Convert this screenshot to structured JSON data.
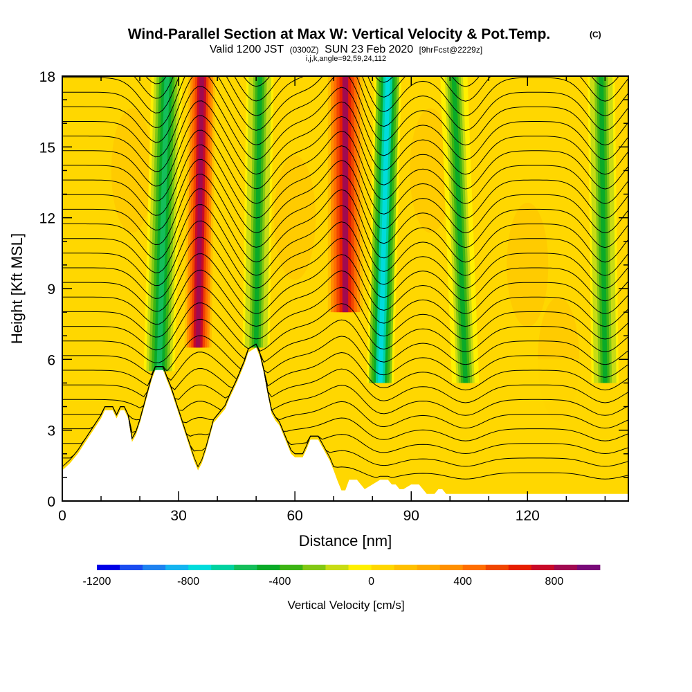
{
  "header": {
    "title": "Wind-Parallel Section at Max W: Vertical Velocity & Pot.Temp.",
    "copyright": "(C)",
    "valid_prefix": "Valid 1200 JST",
    "valid_utc": "(0300Z)",
    "valid_date": "SUN 23 Feb 2020",
    "forecast": "[9hrFcst@2229z]",
    "indices": "i,j,k,angle=92,59,24,112"
  },
  "chart_data": {
    "type": "heatmap",
    "xlabel": "Distance [nm]",
    "ylabel": "Height [Kft MSL]",
    "xlim": [
      0,
      146
    ],
    "ylim": [
      0,
      18
    ],
    "x_ticks": [
      0,
      30,
      60,
      90,
      120
    ],
    "y_ticks": [
      0,
      3,
      6,
      9,
      12,
      15,
      18
    ],
    "colorbar": {
      "label": "Vertical Velocity [cm/s]",
      "min": -1200,
      "max": 1000,
      "step": 100,
      "tick_values": [
        -1200,
        -800,
        -400,
        0,
        400,
        800
      ],
      "tick_labels": [
        "-1200",
        "-800",
        "-400",
        "0",
        "400",
        "800"
      ],
      "colors": [
        "#0000e6",
        "#1a4cf0",
        "#1e82f0",
        "#14b4f0",
        "#00dcdc",
        "#00d2a0",
        "#14be5a",
        "#0aaa28",
        "#3cb414",
        "#82c814",
        "#c8dc14",
        "#fff000",
        "#ffd700",
        "#ffc000",
        "#ffaa00",
        "#ff9000",
        "#ff6e00",
        "#f04600",
        "#e61e00",
        "#c80a28",
        "#a00a50",
        "#780a78"
      ]
    },
    "vertical_velocity_bands": [
      {
        "x": 25,
        "x_top": 27,
        "width": 4,
        "base_ft": 5500,
        "w": -520
      },
      {
        "x": 35,
        "x_top": 36,
        "width": 3.5,
        "base_ft": 6500,
        "w": 850
      },
      {
        "x": 50,
        "x_top": 51,
        "width": 3.5,
        "base_ft": 6500,
        "w": -430
      },
      {
        "x": 73,
        "x_top": 73,
        "width": 4.5,
        "base_ft": 8000,
        "w": 820
      },
      {
        "x": 82,
        "x_top": 84,
        "width": 3.5,
        "base_ft": 5000,
        "w": -760
      },
      {
        "x": 104,
        "x_top": 101,
        "width": 3.5,
        "base_ft": 5000,
        "w": -420
      },
      {
        "x": 140,
        "x_top": 139,
        "width": 3.5,
        "base_ft": 5000,
        "w": -440
      }
    ],
    "terrain_kft": [
      [
        0,
        1.3
      ],
      [
        2,
        1.6
      ],
      [
        4,
        2.0
      ],
      [
        6,
        2.5
      ],
      [
        8,
        3.0
      ],
      [
        10,
        3.5
      ],
      [
        11,
        3.85
      ],
      [
        13,
        3.85
      ],
      [
        14,
        3.5
      ],
      [
        15,
        3.85
      ],
      [
        16,
        3.85
      ],
      [
        17,
        3.5
      ],
      [
        17.5,
        3.0
      ],
      [
        18,
        2.5
      ],
      [
        19,
        2.8
      ],
      [
        20,
        3.3
      ],
      [
        21,
        3.9
      ],
      [
        22,
        4.5
      ],
      [
        23,
        5.1
      ],
      [
        24,
        5.55
      ],
      [
        26,
        5.55
      ],
      [
        27,
        5.1
      ],
      [
        28,
        4.7
      ],
      [
        29,
        4.2
      ],
      [
        30,
        3.7
      ],
      [
        31,
        3.2
      ],
      [
        32,
        2.7
      ],
      [
        33,
        2.2
      ],
      [
        34,
        1.7
      ],
      [
        35,
        1.3
      ],
      [
        36,
        1.6
      ],
      [
        37,
        2.1
      ],
      [
        38,
        2.7
      ],
      [
        39,
        3.3
      ],
      [
        41,
        3.7
      ],
      [
        42,
        3.9
      ],
      [
        43,
        4.3
      ],
      [
        45,
        5.0
      ],
      [
        47,
        5.8
      ],
      [
        48,
        6.3
      ],
      [
        50,
        6.5
      ],
      [
        51,
        6.1
      ],
      [
        52,
        5.4
      ],
      [
        53,
        4.5
      ],
      [
        54,
        3.7
      ],
      [
        55,
        3.4
      ],
      [
        56,
        3.2
      ],
      [
        57,
        2.8
      ],
      [
        58,
        2.4
      ],
      [
        59,
        2.0
      ],
      [
        60,
        1.85
      ],
      [
        62,
        1.85
      ],
      [
        63,
        2.2
      ],
      [
        64,
        2.6
      ],
      [
        66,
        2.6
      ],
      [
        67,
        2.3
      ],
      [
        68,
        2.0
      ],
      [
        69,
        1.7
      ],
      [
        70,
        1.3
      ],
      [
        71,
        0.85
      ],
      [
        72,
        0.45
      ],
      [
        73,
        0.45
      ],
      [
        74,
        0.9
      ],
      [
        76,
        0.9
      ],
      [
        77,
        0.7
      ],
      [
        78,
        0.5
      ],
      [
        80,
        0.7
      ],
      [
        82,
        0.9
      ],
      [
        84,
        0.9
      ],
      [
        85,
        0.7
      ],
      [
        86,
        0.7
      ],
      [
        87,
        0.5
      ],
      [
        88,
        0.5
      ],
      [
        90,
        0.7
      ],
      [
        92,
        0.7
      ],
      [
        93,
        0.5
      ],
      [
        94,
        0.3
      ],
      [
        96,
        0.3
      ],
      [
        97,
        0.5
      ],
      [
        98,
        0.5
      ],
      [
        99,
        0.3
      ],
      [
        146,
        0.3
      ]
    ],
    "theta_range_K": [
      284,
      316
    ],
    "theta_interval_K": 1
  }
}
